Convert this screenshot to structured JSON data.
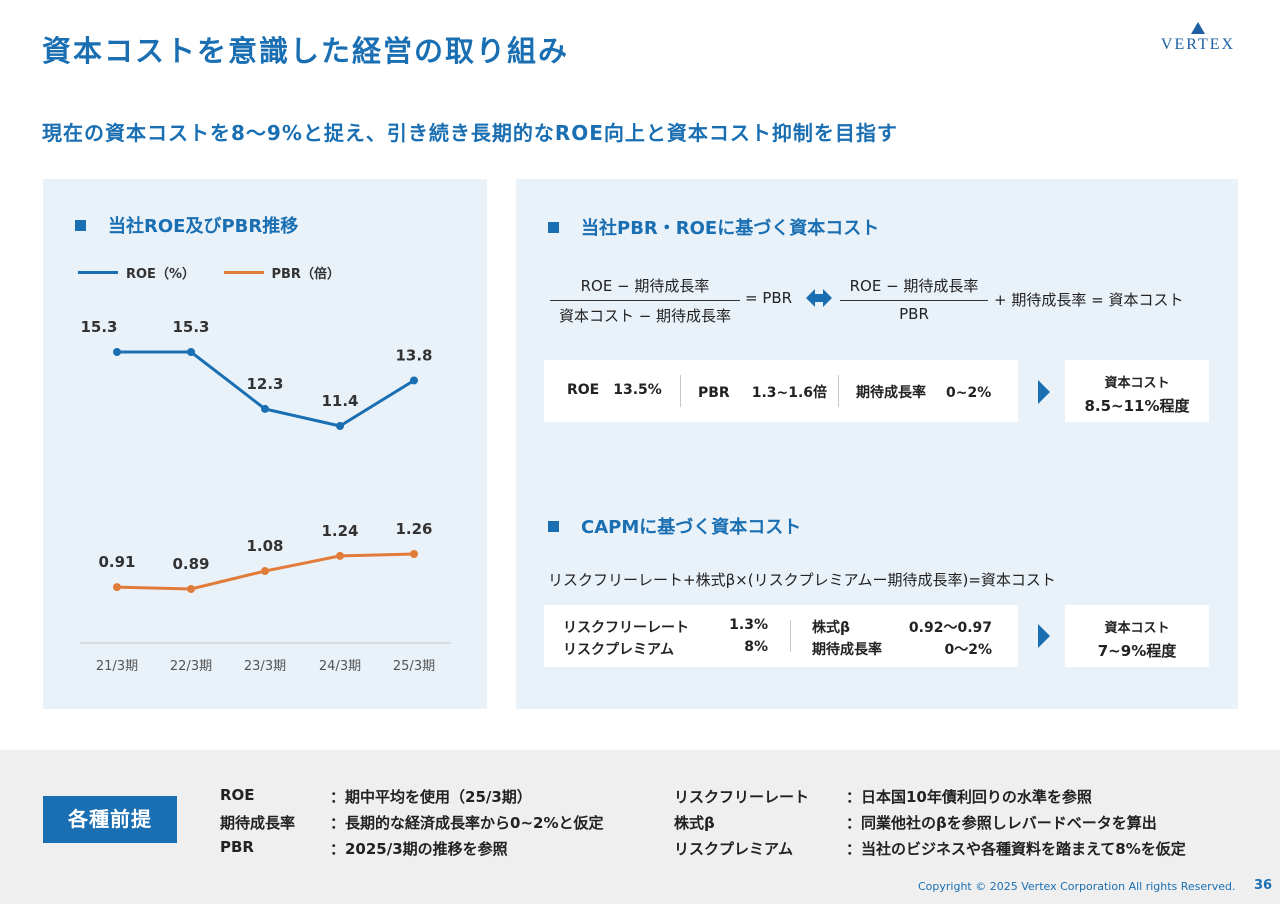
{
  "header": {
    "title": "資本コストを意識した経営の取り組み",
    "logo_text": "VERTEX",
    "subtitle": "現在の資本コストを8〜9%と捉え、引き続き長期的なROE向上と資本コスト抑制を目指す"
  },
  "left_panel": {
    "heading": "当社ROE及びPBR推移"
  },
  "chart_data": {
    "type": "line",
    "title": "当社ROE及びPBR推移",
    "categories": [
      "21/3期",
      "22/3期",
      "23/3期",
      "24/3期",
      "25/3期"
    ],
    "series": [
      {
        "name": "ROE（%）",
        "color": "#1a6fb3",
        "values": [
          15.3,
          15.3,
          12.3,
          11.4,
          13.8
        ],
        "labels": [
          "15.3",
          "15.3",
          "12.3",
          "11.4",
          "13.8"
        ]
      },
      {
        "name": "PBR（倍）",
        "color": "#e07b39",
        "values": [
          0.91,
          0.89,
          1.08,
          1.24,
          1.26
        ],
        "labels": [
          "0.91",
          "0.89",
          "1.08",
          "1.24",
          "1.26"
        ]
      }
    ],
    "legend": "top-left",
    "grid": false
  },
  "right_panel": {
    "pbr_section": {
      "heading": "当社PBR・ROEに基づく資本コスト",
      "formula_left_num": "ROE − 期待成長率",
      "formula_left_den": "資本コスト − 期待成長率",
      "formula_left_result": "= PBR",
      "formula_right_num": "ROE − 期待成長率",
      "formula_right_den": "PBR",
      "formula_right_result": "+ 期待成長率 = 資本コスト",
      "inputs": [
        {
          "label": "ROE",
          "value": "13.5%"
        },
        {
          "label": "PBR",
          "value": "1.3~1.6倍"
        },
        {
          "label": "期待成長率",
          "value": "0~2%"
        }
      ],
      "result_label": "資本コスト",
      "result_value": "8.5~11%程度"
    },
    "capm_section": {
      "heading": "CAPMに基づく資本コスト",
      "formula": "リスクフリーレート+株式β×(リスクプレミアムー期待成長率)=資本コスト",
      "inputs_left": [
        {
          "label": "リスクフリーレート",
          "value": "1.3%"
        },
        {
          "label": "リスクプレミアム",
          "value": "8%"
        }
      ],
      "inputs_right": [
        {
          "label": "株式β",
          "value": "0.92〜0.97"
        },
        {
          "label": "期待成長率",
          "value": "0〜2%"
        }
      ],
      "result_label": "資本コスト",
      "result_value": "7~9%程度"
    }
  },
  "assumptions": {
    "badge": "各種前提",
    "left": [
      {
        "term": "ROE",
        "desc": "：期中平均を使用（25/3期）"
      },
      {
        "term": "期待成長率",
        "desc": "：長期的な経済成長率から0~2%と仮定"
      },
      {
        "term": "PBR",
        "desc": "：2025/3期の推移を参照"
      }
    ],
    "right": [
      {
        "term": "リスクフリーレート",
        "desc": "：日本国10年債利回りの水準を参照"
      },
      {
        "term": "株式β",
        "desc": "：同業他社のβを参照しレバードベータを算出"
      },
      {
        "term": "リスクプレミアム",
        "desc": "：当社のビジネスや各種資料を踏まえて8%を仮定"
      }
    ]
  },
  "footer": {
    "copyright": "Copyright © 2025 Vertex Corporation All rights Reserved.",
    "page_number": "36"
  },
  "colors": {
    "accent": "#1a6fb3",
    "pbr_line": "#e07b39",
    "panel_bg": "#eaf2f9"
  }
}
